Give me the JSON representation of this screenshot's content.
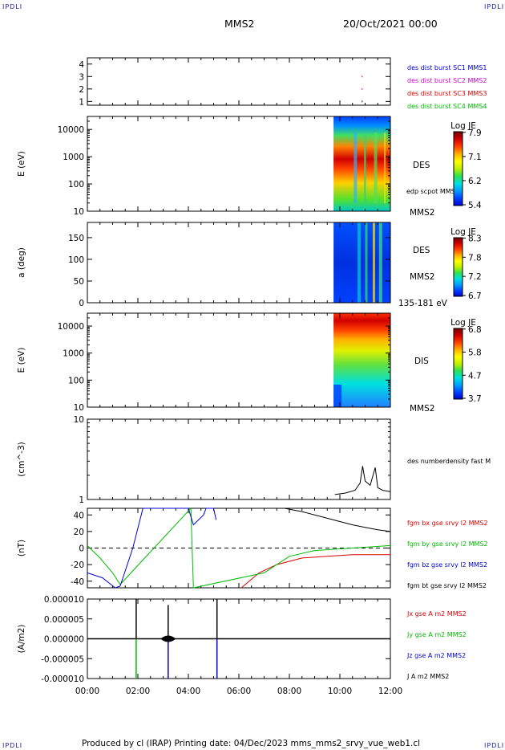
{
  "corner_labels": {
    "top_left": "IPDLI",
    "top_right": "IPDLI",
    "bottom_left": "IPDLI",
    "bottom_right": "IPDLI"
  },
  "header": {
    "spacecraft": "MMS2",
    "datetime": "20/Oct/2021 00:00"
  },
  "footer": {
    "text": "Produced by cl (IRAP)   Printing date: 04/Dec/2023   mms_mms2_srvy_vue_web1.cl"
  },
  "colors": {
    "mms1": "#0000cc",
    "mms2": "#cc00cc",
    "mms3": "#dd0000",
    "mms4": "#00bb00",
    "black": "#000000"
  },
  "colormap": [
    "#0000cc",
    "#0044ff",
    "#00a0ff",
    "#00e0e0",
    "#30e050",
    "#c0f000",
    "#ffff00",
    "#ffb000",
    "#ff4000",
    "#d00000",
    "#700000"
  ],
  "panels": {
    "burst": {
      "y_ticks": [
        "1",
        "2",
        "3",
        "4"
      ],
      "legend": [
        {
          "label": "des dist burst SC1 MMS1",
          "color": "#0000cc"
        },
        {
          "label": "des dist burst SC2 MMS2",
          "color": "#cc00cc"
        },
        {
          "label": "des dist burst SC3 MMS3",
          "color": "#dd0000"
        },
        {
          "label": "des dist burst SC4 MMS4",
          "color": "#00bb00"
        }
      ]
    },
    "des_energy": {
      "ylabel": "E (eV)",
      "y_ticks": [
        "10",
        "100",
        "1000",
        "10000"
      ],
      "side_label": "DES",
      "side_label2": "MMS2",
      "side_small": "edp scpot MMS2",
      "cbar_title": "Log JE",
      "cbar_ticks": [
        "5.4",
        "6.2",
        "7.1",
        "7.9"
      ]
    },
    "des_pitch": {
      "ylabel": "a (deg)",
      "y_ticks": [
        "0",
        "50",
        "100",
        "150"
      ],
      "side_label": "DES",
      "side_label2": "MMS2",
      "side_label3": "135-181 eV",
      "cbar_title": "Log JE",
      "cbar_ticks": [
        "6.7",
        "7.2",
        "7.8",
        "8.3"
      ]
    },
    "dis_energy": {
      "ylabel": "E (eV)",
      "y_ticks": [
        "10",
        "100",
        "1000",
        "10000"
      ],
      "side_label": "DIS",
      "side_label2": "MMS2",
      "cbar_title": "Log JE",
      "cbar_ticks": [
        "3.7",
        "4.7",
        "5.8",
        "6.8"
      ]
    },
    "density": {
      "ylabel": "(cm^-3)",
      "y_ticks": [
        "1",
        "10"
      ],
      "side_small": "des numberdensity fast M"
    },
    "fgm": {
      "ylabel": "(nT)",
      "y_ticks": [
        "-40",
        "-20",
        "0",
        "20",
        "40"
      ],
      "legend": [
        {
          "label": "fgm bx gse srvy l2 MMS2",
          "color": "#dd0000"
        },
        {
          "label": "fgm by gse srvy l2 MMS2",
          "color": "#00bb00"
        },
        {
          "label": "fgm bz gse srvy l2 MMS2",
          "color": "#0000cc"
        },
        {
          "label": "fgm bt gse srvy l2 MMS2",
          "color": "#000000"
        }
      ]
    },
    "current": {
      "ylabel": "(A/m2)",
      "y_ticks": [
        "-0.000010",
        "-0.000005",
        "0.000000",
        "0.000005",
        "0.000010"
      ],
      "legend": [
        {
          "label": "Jx gse A m2 MMS2",
          "color": "#dd0000"
        },
        {
          "label": "Jy gse A m2 MMS2",
          "color": "#00bb00"
        },
        {
          "label": "Jz gse A m2 MMS2",
          "color": "#0000cc"
        },
        {
          "label": "J A m2 MMS2",
          "color": "#000000"
        }
      ]
    }
  },
  "chart_data": {
    "type": "line",
    "x_range": [
      "00:00",
      "12:00"
    ],
    "x_ticks": [
      "00:00",
      "02:00",
      "04:00",
      "06:00",
      "08:00",
      "10:00",
      "12:00"
    ],
    "spectrogram_start": "09:45",
    "burst_marks": [
      {
        "time": "10:52",
        "sc": 3
      },
      {
        "time": "10:52",
        "sc": 2
      },
      {
        "time": "10:52",
        "sc": 1
      }
    ],
    "density": {
      "ylim": [
        1,
        10
      ],
      "scale": "log",
      "points": [
        [
          9.8,
          1.15
        ],
        [
          10.2,
          1.2
        ],
        [
          10.6,
          1.3
        ],
        [
          10.8,
          1.6
        ],
        [
          10.9,
          2.6
        ],
        [
          11.0,
          1.7
        ],
        [
          11.2,
          1.5
        ],
        [
          11.4,
          2.5
        ],
        [
          11.5,
          1.4
        ],
        [
          11.7,
          1.3
        ],
        [
          12.0,
          1.25
        ]
      ]
    },
    "fgm": {
      "ylim": [
        -48,
        48
      ],
      "bx": [
        [
          6.1,
          -48
        ],
        [
          6.8,
          -30
        ],
        [
          7.5,
          -20
        ],
        [
          8.5,
          -12
        ],
        [
          9.5,
          -10
        ],
        [
          10.5,
          -8
        ],
        [
          11.5,
          -8
        ],
        [
          12.0,
          -8
        ]
      ],
      "by": [
        [
          0.0,
          3
        ],
        [
          0.5,
          -12
        ],
        [
          1.0,
          -30
        ],
        [
          1.3,
          -44
        ],
        [
          4.1,
          48
        ],
        [
          4.2,
          -48
        ],
        [
          7.0,
          -30
        ],
        [
          8.0,
          -10
        ],
        [
          9.0,
          -3
        ],
        [
          10.0,
          -1
        ],
        [
          11.0,
          1
        ],
        [
          12.0,
          3
        ]
      ],
      "bz": [
        [
          0.0,
          -30
        ],
        [
          0.6,
          -36
        ],
        [
          1.1,
          -48
        ],
        [
          1.3,
          -46
        ],
        [
          1.8,
          0
        ],
        [
          2.2,
          48
        ],
        [
          4.0,
          48
        ],
        [
          4.2,
          28
        ],
        [
          4.6,
          40
        ],
        [
          4.7,
          48
        ],
        [
          5.0,
          48
        ],
        [
          5.1,
          34
        ]
      ],
      "bt": [
        [
          7.8,
          48
        ],
        [
          8.5,
          44
        ],
        [
          9.5,
          36
        ],
        [
          10.5,
          28
        ],
        [
          11.0,
          25
        ],
        [
          11.5,
          22
        ],
        [
          12.0,
          20
        ]
      ]
    },
    "current": {
      "ylim": [
        -1e-05,
        1e-05
      ],
      "spikes": [
        {
          "time": "01:56",
          "value": 1e-05,
          "series": "J"
        },
        {
          "time": "01:56",
          "value": -1e-05,
          "series": "Jy"
        },
        {
          "time": "03:12",
          "value": 8.5e-06,
          "series": "J"
        },
        {
          "time": "03:12",
          "value": -1e-05,
          "series": "Jz"
        },
        {
          "time": "05:08",
          "value": 1e-05,
          "series": "J"
        },
        {
          "time": "05:08",
          "value": -1e-05,
          "series": "Jz"
        }
      ]
    }
  }
}
